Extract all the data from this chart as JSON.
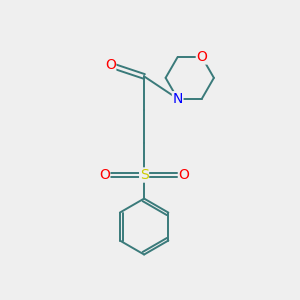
{
  "background_color": "#efefef",
  "bond_color": "#3a7a7a",
  "atom_colors": {
    "O": "#ff0000",
    "N": "#0000ff",
    "S": "#cccc00"
  },
  "figsize": [
    3.0,
    3.0
  ],
  "dpi": 100,
  "bond_lw": 1.4,
  "font_size": 9.5
}
